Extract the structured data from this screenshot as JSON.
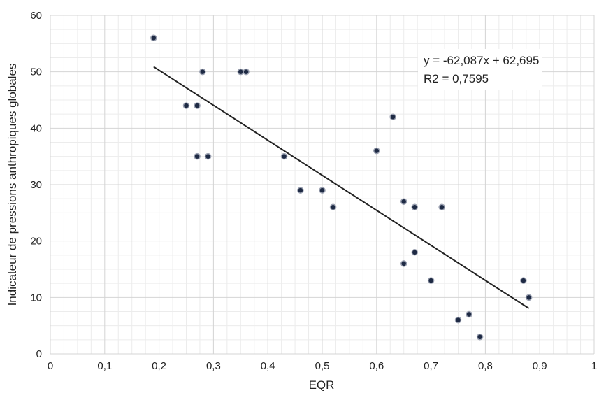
{
  "chart_data": {
    "type": "scatter",
    "title": "",
    "xlabel": "EQR",
    "ylabel": "Indicateur de pressions anthropiques globales",
    "xlim": [
      0,
      1
    ],
    "ylim": [
      0,
      60
    ],
    "x_ticks": [
      "0",
      "0,1",
      "0,2",
      "0,3",
      "0,4",
      "0,5",
      "0,6",
      "0,7",
      "0,8",
      "0,9",
      "1"
    ],
    "y_ticks": [
      "0",
      "10",
      "20",
      "30",
      "40",
      "50",
      "60"
    ],
    "grid": true,
    "points": [
      {
        "x": 0.19,
        "y": 56
      },
      {
        "x": 0.25,
        "y": 44
      },
      {
        "x": 0.27,
        "y": 44
      },
      {
        "x": 0.27,
        "y": 35
      },
      {
        "x": 0.28,
        "y": 50
      },
      {
        "x": 0.29,
        "y": 35
      },
      {
        "x": 0.35,
        "y": 50
      },
      {
        "x": 0.36,
        "y": 50
      },
      {
        "x": 0.43,
        "y": 35
      },
      {
        "x": 0.46,
        "y": 29
      },
      {
        "x": 0.5,
        "y": 29
      },
      {
        "x": 0.52,
        "y": 26
      },
      {
        "x": 0.6,
        "y": 36
      },
      {
        "x": 0.63,
        "y": 42
      },
      {
        "x": 0.65,
        "y": 27
      },
      {
        "x": 0.65,
        "y": 16
      },
      {
        "x": 0.67,
        "y": 26
      },
      {
        "x": 0.67,
        "y": 18
      },
      {
        "x": 0.7,
        "y": 13
      },
      {
        "x": 0.72,
        "y": 26
      },
      {
        "x": 0.75,
        "y": 6
      },
      {
        "x": 0.77,
        "y": 7
      },
      {
        "x": 0.79,
        "y": 3
      },
      {
        "x": 0.87,
        "y": 13
      },
      {
        "x": 0.88,
        "y": 10
      }
    ],
    "trendline": {
      "slope": -62.087,
      "intercept": 62.695,
      "x_range": [
        0.19,
        0.88
      ],
      "equation_label": "y = -62,087x + 62,695",
      "r2_label": "R2 = 0,7595"
    },
    "colors": {
      "point_fill": "#1e2a44",
      "point_stroke": "#9aa0b0",
      "trendline": "#222222",
      "grid_major": "#d4d4d4",
      "grid_minor": "#ececec"
    }
  }
}
